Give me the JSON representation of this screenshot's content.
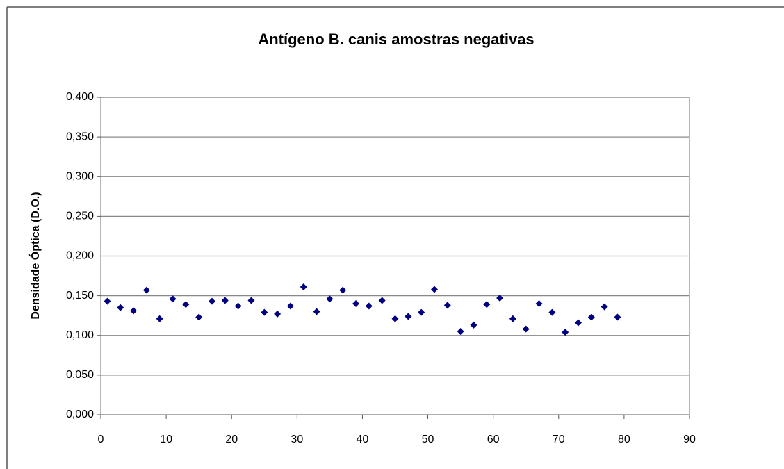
{
  "chart_data": {
    "type": "scatter",
    "title": "Antígeno B. canis amostras negativas",
    "y_label": "Densidade Óptica (D.O.)",
    "color": "#000080",
    "grid": true,
    "xlim": [
      0,
      90
    ],
    "xticks": [
      0,
      10,
      20,
      30,
      40,
      50,
      60,
      70,
      80,
      90
    ],
    "ylim": [
      0,
      0.4
    ],
    "yticks": [
      {
        "value": 0,
        "label": "0,000"
      },
      {
        "value": 0.05,
        "label": "0,050"
      },
      {
        "value": 0.1,
        "label": "0,100"
      },
      {
        "value": 0.15,
        "label": "0,150"
      },
      {
        "value": 0.2,
        "label": "0,200"
      },
      {
        "value": 0.25,
        "label": "0,250"
      },
      {
        "value": 0.3,
        "label": "0,300"
      },
      {
        "value": 0.35,
        "label": "0,350"
      },
      {
        "value": 0.4,
        "label": "0,400"
      }
    ],
    "x": [
      1,
      3,
      5,
      7,
      9,
      11,
      13,
      15,
      17,
      19,
      21,
      23,
      25,
      27,
      29,
      31,
      33,
      35,
      37,
      39,
      41,
      43,
      45,
      47,
      49,
      51,
      53,
      55,
      57,
      59,
      61,
      63,
      65,
      67,
      69,
      71,
      73,
      75,
      77,
      79
    ],
    "values": [
      0.143,
      0.135,
      0.131,
      0.157,
      0.121,
      0.146,
      0.139,
      0.123,
      0.143,
      0.144,
      0.137,
      0.144,
      0.129,
      0.127,
      0.137,
      0.161,
      0.13,
      0.146,
      0.157,
      0.14,
      0.137,
      0.144,
      0.121,
      0.124,
      0.129,
      0.158,
      0.138,
      0.105,
      0.113,
      0.139,
      0.147,
      0.121,
      0.108,
      0.14,
      0.129,
      0.104,
      0.116,
      0.123,
      0.136,
      0.123
    ]
  }
}
